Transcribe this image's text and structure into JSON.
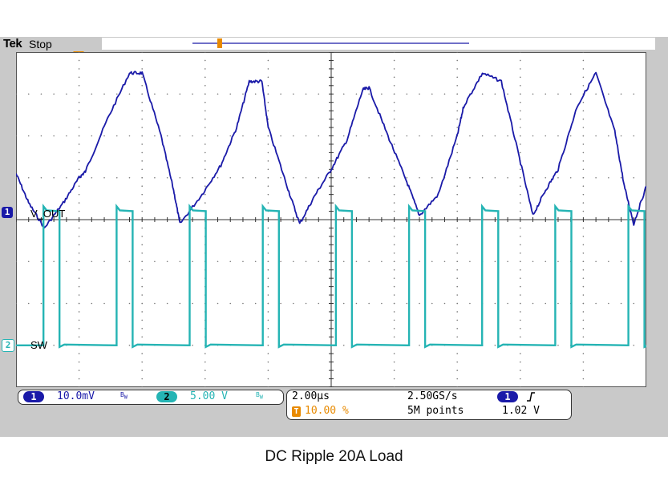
{
  "brand": "Tek",
  "acq_state": "Stop",
  "caption": "DC Ripple 20A Load",
  "trigger_marker": "T",
  "colors": {
    "ch1": "#1a1aa8",
    "ch2": "#25b4b4",
    "trigger": "#e88a00"
  },
  "channels": [
    {
      "id": "1",
      "label": "V_OUT",
      "scale": "10.0mV",
      "bw": "B_W"
    },
    {
      "id": "2",
      "label": "SW",
      "scale": "5.00 V",
      "bw": "B_W"
    }
  ],
  "timebase": {
    "per_div": "2.00µs",
    "sample_rate": "2.50GS/s",
    "trigger_pos": "10.00 %",
    "record_length": "5M points"
  },
  "trigger": {
    "channel": "1",
    "slope": "rising-edge-icon",
    "level": "1.02 V"
  },
  "chart_data": {
    "type": "line",
    "x_divisions": 10,
    "y_divisions": 8,
    "x_unit": "µs",
    "x_per_div": 2.0,
    "series": [
      {
        "name": "V_OUT",
        "units": "mV",
        "per_div": 10.0,
        "ground_div": 0,
        "x": [
          0.0,
          0.4,
          0.9,
          1.5,
          2.0,
          2.2,
          2.9,
          3.6,
          4.0,
          4.6,
          5.0,
          5.2,
          5.9,
          6.5,
          7.0,
          7.4,
          7.8,
          8.0,
          8.6,
          9.0,
          9.5,
          10.0,
          10.5,
          11.0,
          11.2,
          11.8,
          12.4,
          12.8,
          13.4,
          14.0,
          14.2,
          14.8,
          15.4,
          15.9,
          16.4,
          16.8,
          17.2,
          17.8,
          18.4,
          19.0,
          19.3,
          19.6,
          20.0
        ],
        "y": [
          11.0,
          4.0,
          -2.0,
          4.0,
          10.0,
          11.5,
          24.0,
          35.0,
          35.0,
          20.0,
          7.0,
          -1.0,
          6.0,
          13.0,
          22.0,
          33.0,
          33.0,
          22.0,
          8.0,
          -1.0,
          6.0,
          12.0,
          19.0,
          31.0,
          31.5,
          20.0,
          9.0,
          1.0,
          6.0,
          20.0,
          27.0,
          35.0,
          33.0,
          17.0,
          1.0,
          7.0,
          12.0,
          27.0,
          35.0,
          21.0,
          8.0,
          -1.0,
          8.0
        ]
      },
      {
        "name": "SW",
        "units": "V",
        "per_div": 5.0,
        "ground_div": -3,
        "periods_us": 2.32,
        "high_v": 16.3,
        "low_v": 0.0,
        "edges_us": [
          [
            0.87,
            1.38
          ],
          [
            3.19,
            3.7
          ],
          [
            5.51,
            6.02
          ],
          [
            7.83,
            8.34
          ],
          [
            10.15,
            10.66
          ],
          [
            12.47,
            12.98
          ],
          [
            14.79,
            15.3
          ],
          [
            17.11,
            17.62
          ],
          [
            19.43,
            19.94
          ]
        ]
      }
    ]
  }
}
